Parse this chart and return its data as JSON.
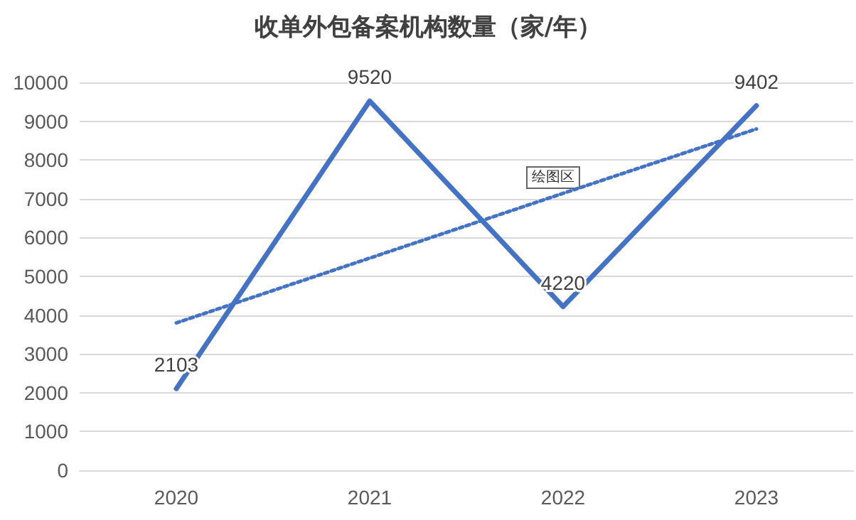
{
  "chart_data": {
    "type": "line",
    "title": "收单外包备案机构数量（家/年）",
    "categories": [
      "2020",
      "2021",
      "2022",
      "2023"
    ],
    "series": [
      {
        "color": "#4472c4",
        "values": [
          2103,
          9520,
          4220,
          9402
        ],
        "data_labels": true,
        "line_style": "solid"
      },
      {
        "color": "#4472c4",
        "values": [
          3800,
          5470,
          7140,
          8800
        ],
        "line_style": "dotted"
      }
    ],
    "ylim": [
      0,
      10000
    ],
    "yticks": [
      0,
      1000,
      2000,
      3000,
      4000,
      5000,
      6000,
      7000,
      8000,
      9000,
      10000
    ],
    "grid": "y",
    "marker": "none",
    "annotations": [
      "绘图区"
    ]
  }
}
